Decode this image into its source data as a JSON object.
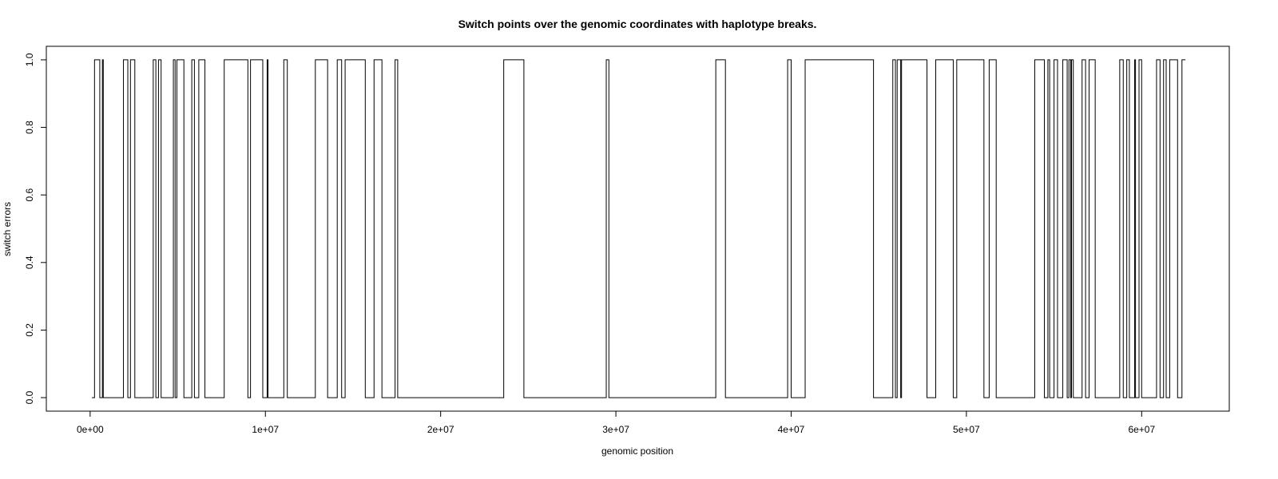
{
  "chart_data": {
    "type": "line",
    "step": true,
    "title": "Switch points over the genomic coordinates with haplotype breaks.",
    "xlabel": "genomic position",
    "ylabel": "switch errors",
    "xlim": [
      -2500000,
      65000000
    ],
    "ylim": [
      -0.04,
      1.04
    ],
    "x_ticks": [
      0,
      10000000,
      20000000,
      30000000,
      40000000,
      50000000,
      60000000
    ],
    "x_tick_labels": [
      "0e+00",
      "1e+07",
      "2e+07",
      "3e+07",
      "4e+07",
      "5e+07",
      "6e+07"
    ],
    "y_ticks": [
      0.0,
      0.2,
      0.4,
      0.6,
      0.8,
      1.0
    ],
    "y_tick_labels": [
      "0.0",
      "0.2",
      "0.4",
      "0.6",
      "0.8",
      "1.0"
    ],
    "grid": false,
    "series_color": "#000000",
    "initial_value": 0,
    "x_start": 100000,
    "x_end": 62500000,
    "switch_positions": [
      250000,
      550000,
      700000,
      750000,
      1900000,
      2150000,
      2300000,
      2550000,
      3600000,
      3750000,
      3900000,
      4050000,
      4750000,
      4850000,
      4950000,
      5350000,
      5800000,
      5950000,
      6200000,
      6550000,
      7650000,
      9000000,
      9150000,
      9850000,
      10100000,
      10150000,
      11050000,
      11250000,
      12850000,
      13550000,
      14100000,
      14350000,
      14550000,
      15700000,
      16200000,
      16650000,
      17400000,
      17550000,
      23600000,
      24750000,
      29450000,
      29600000,
      35700000,
      36250000,
      39800000,
      40000000,
      40800000,
      44700000,
      45800000,
      45950000,
      46050000,
      46250000,
      46300000,
      47750000,
      48250000,
      49250000,
      49450000,
      51000000,
      51300000,
      51700000,
      53900000,
      54450000,
      54650000,
      54750000,
      55000000,
      55200000,
      55500000,
      55750000,
      55850000,
      55950000,
      56000000,
      56100000,
      56600000,
      56800000,
      57000000,
      57350000,
      58750000,
      58950000,
      59150000,
      59300000,
      59600000,
      59650000,
      59850000,
      60000000,
      60850000,
      61050000,
      61250000,
      61400000,
      61600000,
      62050000,
      62300000
    ]
  }
}
